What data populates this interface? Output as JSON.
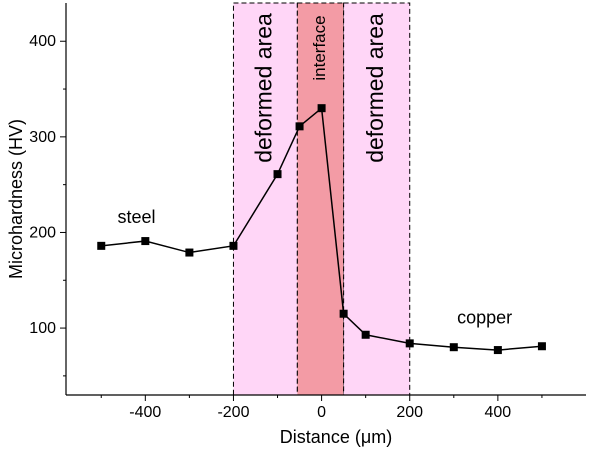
{
  "chart_data": {
    "type": "line",
    "title": "",
    "xlabel": "Distance (μm)",
    "ylabel": "Microhardness (HV)",
    "xlim": [
      -580,
      600
    ],
    "ylim": [
      30,
      440
    ],
    "xticks": [
      -400,
      -200,
      0,
      200,
      400
    ],
    "yticks": [
      100,
      200,
      300,
      400
    ],
    "grid": false,
    "series": [
      {
        "x": [
          -500,
          -400,
          -300,
          -200,
          -100,
          -50,
          0,
          50,
          100,
          200,
          300,
          400,
          500
        ],
        "values": [
          186,
          191,
          179,
          186,
          261,
          311,
          330,
          115,
          93,
          84,
          80,
          77,
          81
        ]
      }
    ],
    "regions": [
      {
        "label": "deformed area",
        "x0": -200,
        "x1": -55,
        "color": "#ffd6f7"
      },
      {
        "label": "interface",
        "x0": -55,
        "x1": 50,
        "color": "#f39ba5"
      },
      {
        "label": "deformed area",
        "x0": 50,
        "x1": 200,
        "color": "#ffd6f7"
      }
    ],
    "annotations": [
      {
        "text": "steel",
        "x": -420,
        "y": 210
      },
      {
        "text": "copper",
        "x": 370,
        "y": 105
      }
    ]
  }
}
